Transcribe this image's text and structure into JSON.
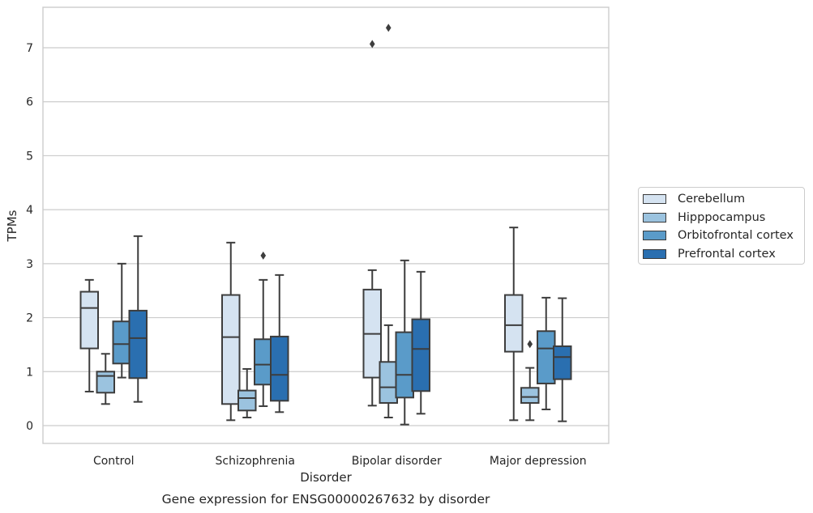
{
  "chart_data": {
    "type": "box",
    "title": "",
    "caption": "Gene expression for ENSG00000267632 by disorder",
    "xlabel": "Disorder",
    "ylabel": "TPMs",
    "ylim": [
      -0.33,
      7.75
    ],
    "yticks": [
      0,
      1,
      2,
      3,
      4,
      5,
      6,
      7
    ],
    "grid": "horizontal",
    "legend_position": "right",
    "categories": [
      "Control",
      "Schizophrenia",
      "Bipolar disorder",
      "Major depression"
    ],
    "series": [
      {
        "name": "Cerebellum",
        "color": "#d5e3f1",
        "boxes": [
          {
            "whislo": 0.63,
            "q1": 1.43,
            "med": 2.18,
            "q3": 2.48,
            "whishi": 2.7,
            "fliers": []
          },
          {
            "whislo": 0.1,
            "q1": 0.4,
            "med": 1.64,
            "q3": 2.42,
            "whishi": 3.39,
            "fliers": []
          },
          {
            "whislo": 0.37,
            "q1": 0.89,
            "med": 1.7,
            "q3": 2.52,
            "whishi": 2.88,
            "fliers": [
              7.07
            ]
          },
          {
            "whislo": 0.1,
            "q1": 1.37,
            "med": 1.86,
            "q3": 2.42,
            "whishi": 3.67,
            "fliers": []
          }
        ]
      },
      {
        "name": "Hipppocampus",
        "color": "#9bc3df",
        "boxes": [
          {
            "whislo": 0.4,
            "q1": 0.61,
            "med": 0.92,
            "q3": 1.0,
            "whishi": 1.33,
            "fliers": []
          },
          {
            "whislo": 0.15,
            "q1": 0.28,
            "med": 0.51,
            "q3": 0.65,
            "whishi": 1.05,
            "fliers": []
          },
          {
            "whislo": 0.15,
            "q1": 0.42,
            "med": 0.71,
            "q3": 1.18,
            "whishi": 1.86,
            "fliers": [
              7.37
            ]
          },
          {
            "whislo": 0.1,
            "q1": 0.42,
            "med": 0.53,
            "q3": 0.7,
            "whishi": 1.07,
            "fliers": [
              1.51
            ]
          }
        ]
      },
      {
        "name": "Orbitofrontal cortex",
        "color": "#5a9bc9",
        "boxes": [
          {
            "whislo": 0.89,
            "q1": 1.15,
            "med": 1.51,
            "q3": 1.93,
            "whishi": 3.0,
            "fliers": []
          },
          {
            "whislo": 0.36,
            "q1": 0.76,
            "med": 1.13,
            "q3": 1.6,
            "whishi": 2.7,
            "fliers": [
              3.15
            ]
          },
          {
            "whislo": 0.02,
            "q1": 0.52,
            "med": 0.94,
            "q3": 1.73,
            "whishi": 3.06,
            "fliers": []
          },
          {
            "whislo": 0.3,
            "q1": 0.78,
            "med": 1.43,
            "q3": 1.75,
            "whishi": 2.37,
            "fliers": []
          }
        ]
      },
      {
        "name": "Prefrontal cortex",
        "color": "#2a6fb0",
        "boxes": [
          {
            "whislo": 0.44,
            "q1": 0.88,
            "med": 1.62,
            "q3": 2.13,
            "whishi": 3.51,
            "fliers": []
          },
          {
            "whislo": 0.25,
            "q1": 0.46,
            "med": 0.94,
            "q3": 1.65,
            "whishi": 2.79,
            "fliers": []
          },
          {
            "whislo": 0.22,
            "q1": 0.64,
            "med": 1.42,
            "q3": 1.97,
            "whishi": 2.85,
            "fliers": []
          },
          {
            "whislo": 0.08,
            "q1": 0.86,
            "med": 1.27,
            "q3": 1.47,
            "whishi": 2.36,
            "fliers": []
          }
        ]
      }
    ]
  }
}
